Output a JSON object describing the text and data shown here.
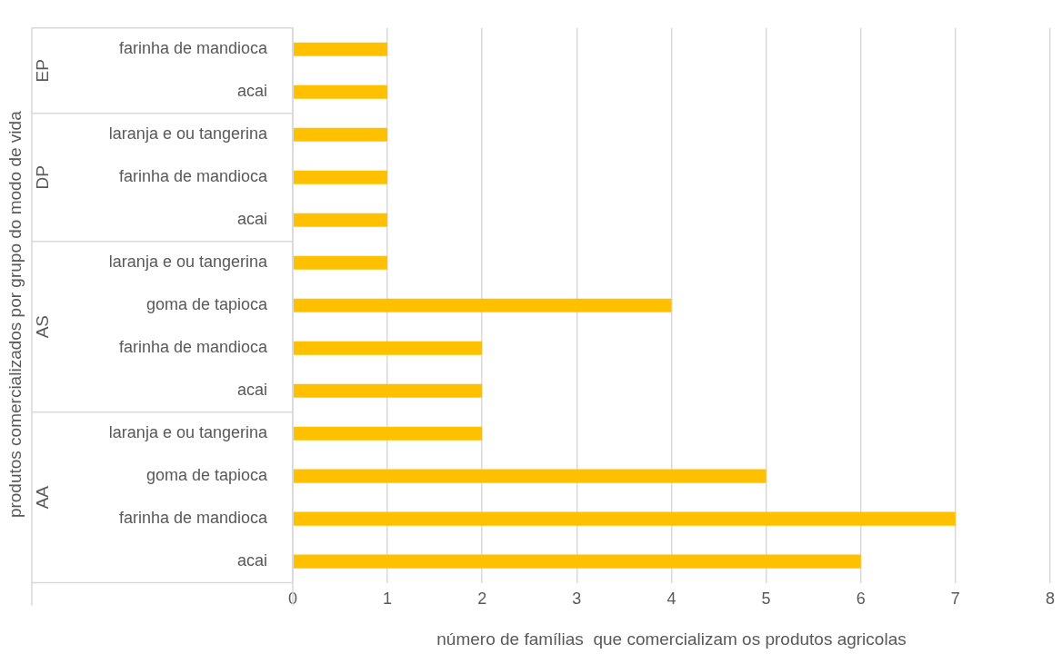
{
  "chart_data": {
    "type": "bar",
    "orientation": "horizontal",
    "categories": [
      "farinha de mandioca",
      "acai",
      "laranja e ou tangerina",
      "farinha de mandioca",
      "acai",
      "laranja e ou tangerina",
      "goma de tapioca",
      "farinha de mandioca",
      "acai",
      "laranja e ou tangerina",
      "goma de tapioca",
      "farinha de mandioca",
      "acai"
    ],
    "values": [
      1,
      1,
      1,
      1,
      1,
      1,
      4,
      2,
      2,
      2,
      5,
      7,
      6
    ],
    "color": "#ffc000",
    "xlim": [
      0,
      8
    ],
    "xticks": [
      0,
      1,
      2,
      3,
      4,
      5,
      6,
      7,
      8
    ],
    "grid": "x",
    "legend": false,
    "xlabel": "número de famílias  que comercializam os produtos agricolas",
    "ylabel": "produtos comercializados por grupo do modo de vida",
    "annotations": [
      "EP",
      "DP",
      "AS",
      "AA"
    ]
  }
}
